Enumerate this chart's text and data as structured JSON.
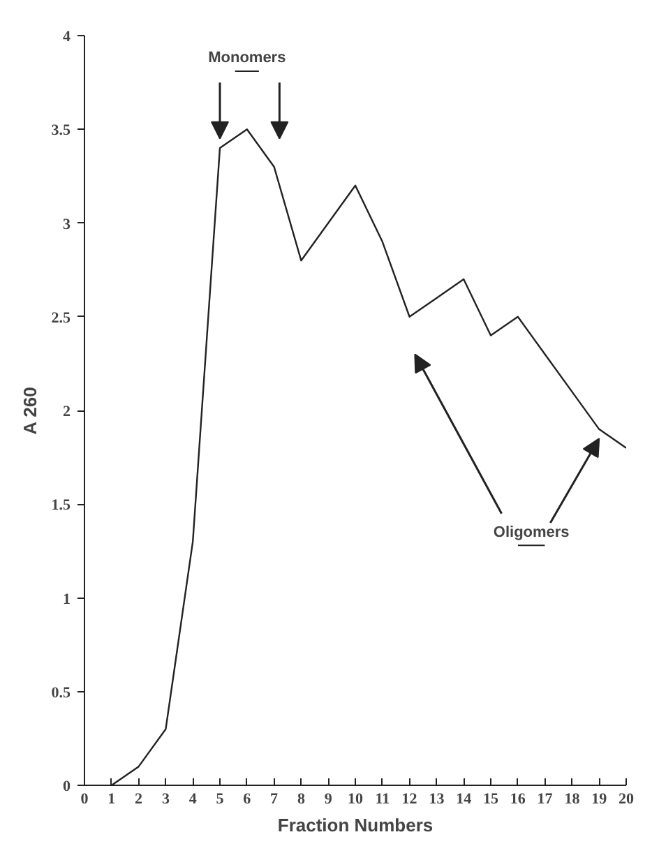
{
  "chart_data": {
    "type": "line",
    "xlabel": "Fraction Numbers",
    "ylabel": "A 260",
    "x": [
      1,
      2,
      3,
      4,
      5,
      6,
      7,
      8,
      9,
      10,
      11,
      12,
      13,
      14,
      15,
      16,
      17,
      18,
      19,
      20
    ],
    "series": [
      {
        "color": "#222222",
        "values": [
          0,
          0.1,
          0.3,
          1.3,
          3.4,
          3.5,
          3.3,
          2.8,
          3.0,
          3.2,
          2.9,
          2.5,
          2.6,
          2.7,
          2.4,
          2.5,
          2.3,
          2.1,
          1.9,
          1.8
        ]
      }
    ],
    "xlim": [
      0,
      20
    ],
    "xticks": [
      0,
      1,
      2,
      3,
      4,
      5,
      6,
      7,
      8,
      9,
      10,
      11,
      12,
      13,
      14,
      15,
      16,
      17,
      18,
      19,
      20
    ],
    "ylim": [
      0,
      4
    ],
    "yticks": [
      0,
      0.5,
      1,
      1.5,
      2,
      2.5,
      3,
      3.5,
      4
    ],
    "annotations": [
      {
        "text": "Monomers",
        "x": 5,
        "y": 3.4
      },
      {
        "text": "Oligomers",
        "x": 19,
        "y": 1.9
      }
    ],
    "grid": false,
    "marker": "none",
    "line_style": "solid"
  }
}
